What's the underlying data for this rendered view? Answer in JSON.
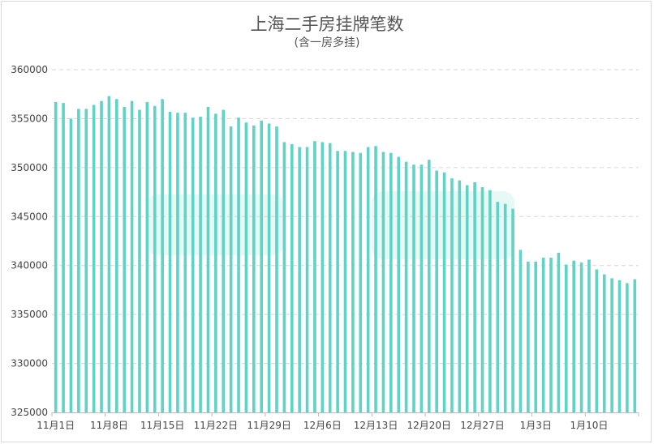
{
  "chart_data": {
    "type": "bar",
    "title": "上海二手房挂牌笔数",
    "subtitle": "(含一房多挂)",
    "xlabel": "",
    "ylabel": "",
    "ylim": [
      325000,
      360000
    ],
    "yticks": [
      325000,
      330000,
      335000,
      340000,
      345000,
      350000,
      355000,
      360000
    ],
    "xtick_labels": [
      "11月1日",
      "11月8日",
      "11月15日",
      "11月22日",
      "11月29日",
      "12月6日",
      "12月13日",
      "12月20日",
      "12月27日",
      "1月3日",
      "1月10日"
    ],
    "xtick_interval": 7,
    "grid": true,
    "bar_color": "#5fd3c6",
    "values": [
      356700,
      356600,
      355000,
      356000,
      356000,
      356400,
      356800,
      357300,
      357000,
      356200,
      356800,
      355900,
      356700,
      356300,
      357000,
      355700,
      355600,
      355600,
      355100,
      355200,
      356200,
      355500,
      355900,
      354200,
      355100,
      354600,
      354300,
      354800,
      354500,
      354200,
      352600,
      352400,
      352100,
      352100,
      352700,
      352600,
      352500,
      351700,
      351700,
      351600,
      351500,
      352100,
      352200,
      351600,
      351500,
      351100,
      350600,
      350300,
      350300,
      350800,
      349700,
      349500,
      348900,
      348700,
      348200,
      348500,
      348000,
      347700,
      346500,
      346300,
      345800,
      341600,
      340400,
      340400,
      340800,
      340800,
      341300,
      340100,
      340500,
      340300,
      340600,
      339600,
      339100,
      338700,
      338500,
      338200,
      338600
    ]
  }
}
